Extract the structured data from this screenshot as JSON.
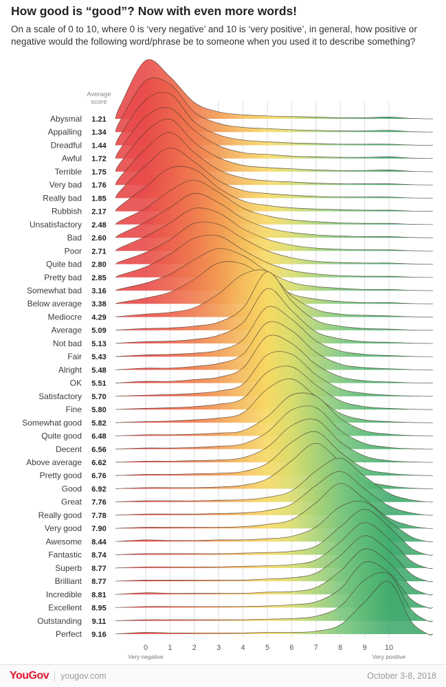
{
  "header": {
    "title": "How good is “good”? Now with even more words!",
    "subtitle": "On a scale of 0 to 10, where 0 is ‘very negative’ and 10 is ‘very positive’, in general, how positive or negative would the following word/phrase be to someone when you used it to describe something?"
  },
  "avg_score_header": "Average score",
  "chart_data": {
    "type": "area",
    "title": "How good is “good”? Now with even more words!",
    "x_axis": {
      "ticks": [
        0,
        1,
        2,
        3,
        4,
        5,
        6,
        7,
        8,
        9,
        10
      ],
      "min_label": "Very negative",
      "max_label": "Very positive"
    },
    "gradient": [
      {
        "v": 0,
        "color": "#e84b4a"
      },
      {
        "v": 1,
        "color": "#ec614c"
      },
      {
        "v": 2,
        "color": "#ef7b4e"
      },
      {
        "v": 3,
        "color": "#f29a53"
      },
      {
        "v": 4,
        "color": "#f5bd5c"
      },
      {
        "v": 5,
        "color": "#f6d964"
      },
      {
        "v": 6,
        "color": "#d9dc6d"
      },
      {
        "v": 7,
        "color": "#aad276"
      },
      {
        "v": 8,
        "color": "#7ec77e"
      },
      {
        "v": 9,
        "color": "#5cba76"
      },
      {
        "v": 10,
        "color": "#43ab70"
      }
    ],
    "rows": [
      {
        "label": "Abysmal",
        "score": "1.21",
        "density": [
          1.0,
          0.72,
          0.28,
          0.12,
          0.07,
          0.05,
          0.04,
          0.03,
          0.02,
          0.02,
          0.03
        ]
      },
      {
        "label": "Appalling",
        "score": "1.34",
        "density": [
          0.88,
          0.82,
          0.34,
          0.15,
          0.08,
          0.06,
          0.04,
          0.03,
          0.02,
          0.02,
          0.03
        ]
      },
      {
        "label": "Dreadful",
        "score": "1.44",
        "density": [
          0.78,
          0.88,
          0.4,
          0.18,
          0.09,
          0.06,
          0.04,
          0.03,
          0.02,
          0.02,
          0.02
        ]
      },
      {
        "label": "Awful",
        "score": "1.72",
        "density": [
          0.72,
          0.86,
          0.48,
          0.22,
          0.1,
          0.07,
          0.04,
          0.03,
          0.02,
          0.02,
          0.03
        ]
      },
      {
        "label": "Terrible",
        "score": "1.75",
        "density": [
          0.68,
          0.9,
          0.5,
          0.24,
          0.11,
          0.07,
          0.05,
          0.03,
          0.02,
          0.02,
          0.03
        ]
      },
      {
        "label": "Very bad",
        "score": "1.76",
        "density": [
          0.62,
          0.9,
          0.55,
          0.26,
          0.12,
          0.07,
          0.05,
          0.03,
          0.02,
          0.02,
          0.02
        ]
      },
      {
        "label": "Really bad",
        "score": "1.85",
        "density": [
          0.56,
          0.86,
          0.62,
          0.3,
          0.13,
          0.08,
          0.05,
          0.03,
          0.02,
          0.02,
          0.02
        ]
      },
      {
        "label": "Rubbish",
        "score": "2.17",
        "density": [
          0.42,
          0.74,
          0.72,
          0.4,
          0.18,
          0.1,
          0.06,
          0.04,
          0.03,
          0.02,
          0.02
        ]
      },
      {
        "label": "Unsatisfactory",
        "score": "2.48",
        "density": [
          0.28,
          0.58,
          0.76,
          0.55,
          0.28,
          0.15,
          0.08,
          0.05,
          0.03,
          0.02,
          0.02
        ]
      },
      {
        "label": "Bad",
        "score": "2.60",
        "density": [
          0.27,
          0.52,
          0.76,
          0.6,
          0.33,
          0.17,
          0.09,
          0.05,
          0.03,
          0.02,
          0.02
        ]
      },
      {
        "label": "Poor",
        "score": "2.71",
        "density": [
          0.25,
          0.48,
          0.73,
          0.65,
          0.38,
          0.2,
          0.1,
          0.05,
          0.03,
          0.02,
          0.02
        ]
      },
      {
        "label": "Quite bad",
        "score": "2.80",
        "density": [
          0.2,
          0.42,
          0.7,
          0.68,
          0.44,
          0.23,
          0.11,
          0.05,
          0.03,
          0.02,
          0.02
        ]
      },
      {
        "label": "Pretty bad",
        "score": "2.85",
        "density": [
          0.18,
          0.4,
          0.67,
          0.71,
          0.47,
          0.25,
          0.12,
          0.06,
          0.03,
          0.02,
          0.02
        ]
      },
      {
        "label": "Somewhat bad",
        "score": "3.16",
        "density": [
          0.13,
          0.28,
          0.53,
          0.72,
          0.6,
          0.33,
          0.14,
          0.07,
          0.04,
          0.02,
          0.02
        ]
      },
      {
        "label": "Below average",
        "score": "3.38",
        "density": [
          0.1,
          0.2,
          0.42,
          0.7,
          0.68,
          0.42,
          0.17,
          0.08,
          0.04,
          0.02,
          0.02
        ]
      },
      {
        "label": "Mediocre",
        "score": "4.29",
        "density": [
          0.05,
          0.08,
          0.16,
          0.4,
          0.73,
          0.78,
          0.36,
          0.13,
          0.05,
          0.03,
          0.02
        ]
      },
      {
        "label": "Average",
        "score": "5.09",
        "density": [
          0.03,
          0.04,
          0.07,
          0.14,
          0.38,
          1.0,
          0.5,
          0.17,
          0.07,
          0.03,
          0.02
        ]
      },
      {
        "label": "Not bad",
        "score": "5.13",
        "density": [
          0.03,
          0.04,
          0.07,
          0.14,
          0.36,
          0.94,
          0.56,
          0.2,
          0.08,
          0.03,
          0.02
        ]
      },
      {
        "label": "Fair",
        "score": "5.43",
        "density": [
          0.03,
          0.04,
          0.06,
          0.11,
          0.29,
          0.85,
          0.64,
          0.27,
          0.1,
          0.04,
          0.02
        ]
      },
      {
        "label": "Alright",
        "score": "5.48",
        "density": [
          0.03,
          0.03,
          0.06,
          0.11,
          0.27,
          0.81,
          0.67,
          0.3,
          0.1,
          0.04,
          0.02
        ]
      },
      {
        "label": "OK",
        "score": "5.51",
        "density": [
          0.03,
          0.03,
          0.06,
          0.1,
          0.26,
          0.8,
          0.68,
          0.32,
          0.11,
          0.04,
          0.02
        ]
      },
      {
        "label": "Satisfactory",
        "score": "5.70",
        "density": [
          0.02,
          0.03,
          0.05,
          0.09,
          0.21,
          0.71,
          0.72,
          0.37,
          0.13,
          0.05,
          0.02
        ]
      },
      {
        "label": "Fine",
        "score": "5.80",
        "density": [
          0.02,
          0.03,
          0.05,
          0.09,
          0.19,
          0.64,
          0.73,
          0.42,
          0.15,
          0.05,
          0.02
        ]
      },
      {
        "label": "Somewhat good",
        "score": "5.82",
        "density": [
          0.02,
          0.03,
          0.05,
          0.08,
          0.17,
          0.58,
          0.75,
          0.45,
          0.16,
          0.05,
          0.02
        ]
      },
      {
        "label": "Quite good",
        "score": "6.48",
        "density": [
          0.02,
          0.02,
          0.03,
          0.05,
          0.09,
          0.33,
          0.7,
          0.68,
          0.3,
          0.09,
          0.03
        ]
      },
      {
        "label": "Decent",
        "score": "6.56",
        "density": [
          0.02,
          0.02,
          0.03,
          0.05,
          0.09,
          0.29,
          0.67,
          0.71,
          0.32,
          0.1,
          0.03
        ]
      },
      {
        "label": "Above average",
        "score": "6.62",
        "density": [
          0.02,
          0.02,
          0.03,
          0.04,
          0.08,
          0.26,
          0.63,
          0.73,
          0.35,
          0.11,
          0.03
        ]
      },
      {
        "label": "Pretty good",
        "score": "6.76",
        "density": [
          0.02,
          0.02,
          0.03,
          0.04,
          0.07,
          0.21,
          0.57,
          0.75,
          0.4,
          0.12,
          0.04
        ]
      },
      {
        "label": "Good",
        "score": "6.92",
        "density": [
          0.02,
          0.02,
          0.02,
          0.03,
          0.06,
          0.17,
          0.48,
          0.78,
          0.46,
          0.15,
          0.05
        ]
      },
      {
        "label": "Great",
        "score": "7.76",
        "density": [
          0.02,
          0.02,
          0.02,
          0.03,
          0.04,
          0.08,
          0.19,
          0.53,
          0.75,
          0.44,
          0.15
        ]
      },
      {
        "label": "Really good",
        "score": "7.78",
        "density": [
          0.02,
          0.02,
          0.02,
          0.03,
          0.04,
          0.08,
          0.19,
          0.51,
          0.75,
          0.45,
          0.16
        ]
      },
      {
        "label": "Very good",
        "score": "7.90",
        "density": [
          0.02,
          0.02,
          0.02,
          0.02,
          0.03,
          0.07,
          0.15,
          0.44,
          0.77,
          0.5,
          0.18
        ]
      },
      {
        "label": "Awesome",
        "score": "8.44",
        "density": [
          0.03,
          0.02,
          0.02,
          0.03,
          0.03,
          0.05,
          0.09,
          0.25,
          0.6,
          0.68,
          0.35
        ]
      },
      {
        "label": "Fantastic",
        "score": "8.74",
        "density": [
          0.02,
          0.02,
          0.02,
          0.02,
          0.03,
          0.04,
          0.06,
          0.15,
          0.48,
          0.78,
          0.48
        ]
      },
      {
        "label": "Superb",
        "score": "8.77",
        "density": [
          0.02,
          0.02,
          0.02,
          0.02,
          0.03,
          0.04,
          0.06,
          0.14,
          0.45,
          0.78,
          0.5
        ]
      },
      {
        "label": "Brilliant",
        "score": "8.77",
        "density": [
          0.02,
          0.02,
          0.02,
          0.02,
          0.02,
          0.04,
          0.06,
          0.14,
          0.44,
          0.78,
          0.52
        ]
      },
      {
        "label": "Incredible",
        "score": "8.81",
        "density": [
          0.03,
          0.02,
          0.02,
          0.02,
          0.02,
          0.04,
          0.05,
          0.12,
          0.4,
          0.78,
          0.55
        ]
      },
      {
        "label": "Excellent",
        "score": "8.95",
        "density": [
          0.02,
          0.02,
          0.02,
          0.02,
          0.02,
          0.03,
          0.05,
          0.1,
          0.32,
          0.78,
          0.6
        ]
      },
      {
        "label": "Outstanding",
        "score": "9.11",
        "density": [
          0.02,
          0.02,
          0.02,
          0.02,
          0.02,
          0.03,
          0.04,
          0.08,
          0.25,
          0.7,
          0.8
        ]
      },
      {
        "label": "Perfect",
        "score": "9.16",
        "density": [
          0.03,
          0.02,
          0.02,
          0.02,
          0.02,
          0.03,
          0.03,
          0.05,
          0.16,
          0.55,
          0.9
        ]
      }
    ]
  },
  "footer": {
    "brand": "YouGov",
    "site": "yougov.com",
    "date_range": "October 3-8, 2018"
  }
}
